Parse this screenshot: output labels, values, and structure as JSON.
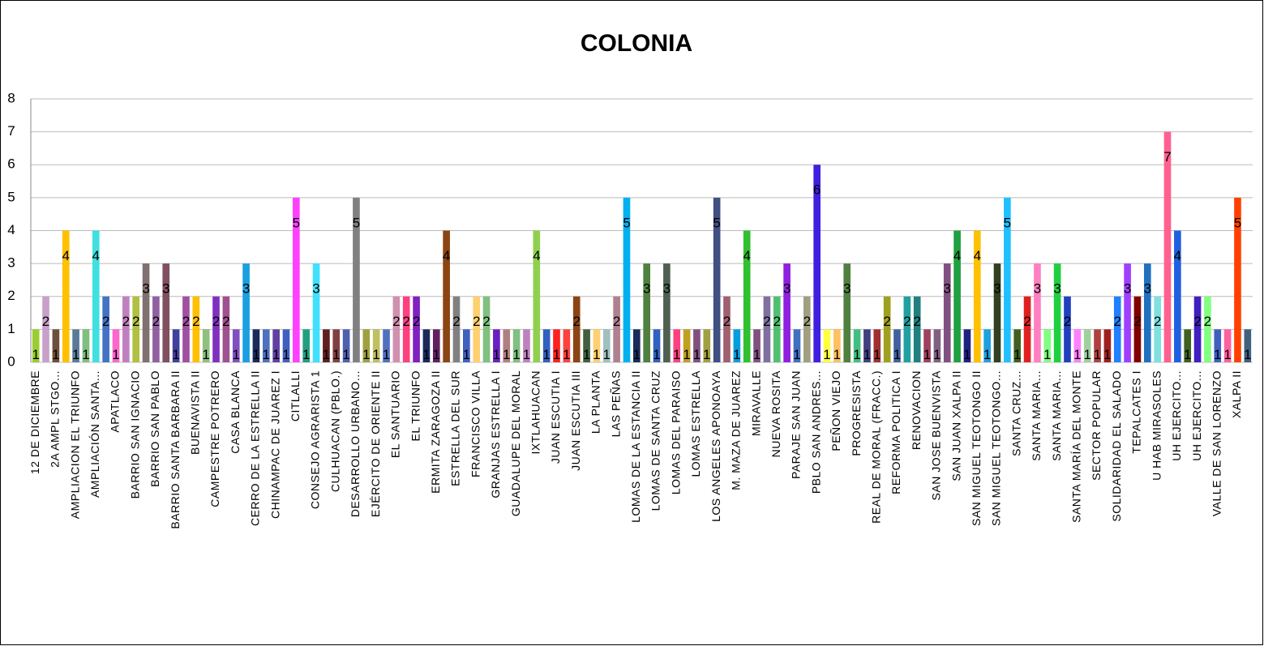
{
  "chart_data": {
    "type": "bar",
    "title": "COLONIA",
    "categories": [
      "12 DE DICIEMBRE",
      null,
      "2A AMPL STGO...",
      null,
      "AMPLIACION EL TRIUNFO",
      null,
      "AMPLIACIÓN SANTA...",
      null,
      "APATLACO",
      null,
      "BARRIO SAN IGNACIO",
      null,
      "BARRIO SAN PABLO",
      null,
      "BARRIO SANTA BARBARA II",
      null,
      "BUENAVISTA II",
      null,
      "CAMPESTRE POTRERO",
      null,
      "CASA BLANCA",
      null,
      "CERRO DE LA ESTRELLA II",
      null,
      "CHINAMPAC DE JUAREZ I",
      null,
      "CITLALLI",
      null,
      "CONSEJO AGRARISTA 1",
      null,
      "CULHUACAN (PBLO.)",
      null,
      "DESARROLLO URBANO...",
      null,
      "EJÉRCITO DE ORIENTE II",
      null,
      "EL SANTUARIO",
      null,
      "EL TRIUNFO",
      null,
      "ERMITA ZARAGOZA II",
      null,
      "ESTRELLA DEL SUR",
      null,
      "FRANCISCO VILLA",
      null,
      "GRANJAS ESTRELLA I",
      null,
      "GUADALUPE DEL MORAL",
      null,
      "IXTLAHUACAN",
      null,
      "JUAN ESCUTIA I",
      null,
      "JUAN ESCUTIA III",
      null,
      "LA PLANTA",
      null,
      "LAS PEÑAS",
      null,
      "LOMAS DE LA ESTANCIA II",
      null,
      "LOMAS DE SANTA CRUZ",
      null,
      "LOMAS DEL PARAISO",
      null,
      "LOMAS ESTRELLA",
      null,
      "LOS ANGELES APONOAYA",
      null,
      "M. MAZA DE JUAREZ",
      null,
      "MIRAVALLE",
      null,
      "NUEVA ROSITA",
      null,
      "PARAJE SAN JUAN",
      null,
      "PBLO SAN ANDRES...",
      null,
      "PEÑON VIEJO",
      null,
      "PROGRESISTA",
      null,
      "REAL DE MORAL (FRACC.)",
      null,
      "REFORMA POLITICA I",
      null,
      "RENOVACION",
      null,
      "SAN JOSE BUENVISTA",
      null,
      "SAN JUAN XALPA II",
      null,
      "SAN MIGUEL TEOTONGO II",
      null,
      "SAN MIGUEL TEOTONGO...",
      null,
      "SANTA CRUZ...",
      null,
      "SANTA MARIA...",
      null,
      "SANTA MARIA...",
      null,
      "SANTA MARÍA DEL MONTE",
      null,
      "SECTOR POPULAR",
      null,
      "SOLIDARIDAD EL SALADO",
      null,
      "TEPALCATES I",
      null,
      "U HAB MIRASOLES",
      null,
      "UH EJERCITO...",
      null,
      "UH EJERCITO...",
      null,
      "VALLE DE SAN LORENZO",
      null,
      "XALPA II",
      null
    ],
    "values": [
      1,
      2,
      1,
      4,
      1,
      1,
      4,
      2,
      1,
      2,
      2,
      3,
      2,
      3,
      1,
      2,
      2,
      1,
      2,
      2,
      1,
      3,
      1,
      1,
      1,
      1,
      5,
      1,
      3,
      1,
      1,
      1,
      5,
      1,
      1,
      1,
      2,
      2,
      2,
      1,
      1,
      4,
      2,
      1,
      2,
      2,
      1,
      1,
      1,
      1,
      4,
      1,
      1,
      1,
      2,
      1,
      1,
      1,
      2,
      5,
      1,
      3,
      1,
      3,
      1,
      1,
      1,
      1,
      5,
      2,
      1,
      4,
      1,
      2,
      2,
      3,
      1,
      2,
      6,
      1,
      1,
      3,
      1,
      1,
      1,
      2,
      1,
      2,
      2,
      1,
      1,
      3,
      4,
      1,
      4,
      1,
      3,
      5,
      1,
      2,
      3,
      1,
      3,
      2,
      1,
      1,
      1,
      1,
      2,
      3,
      2,
      3,
      2,
      7,
      4,
      1,
      2,
      2,
      1,
      1,
      5,
      1
    ],
    "colors": [
      "#9acd32",
      "#c8a0c8",
      "#6b4f3a",
      "#ffc000",
      "#5a7a9a",
      "#7fbf7f",
      "#40e0e0",
      "#4472c4",
      "#ff66cc",
      "#c080c0",
      "#b0c040",
      "#807070",
      "#9060a0",
      "#805060",
      "#4040a0",
      "#a050a0",
      "#ffc000",
      "#90c080",
      "#8030c0",
      "#a05090",
      "#8050c0",
      "#1aa0e0",
      "#1a2a5a",
      "#5070c0",
      "#6040a0",
      "#4060c0",
      "#ff40ff",
      "#20a080",
      "#40e0ff",
      "#602020",
      "#804040",
      "#5060b0",
      "#808080",
      "#a0a040",
      "#c0c060",
      "#5070c0",
      "#d090b0",
      "#ff4080",
      "#8020c0",
      "#1a2a5a",
      "#602060",
      "#8b4513",
      "#808080",
      "#4060c0",
      "#ffd070",
      "#80c080",
      "#6a20c0",
      "#b08080",
      "#80c080",
      "#c080c0",
      "#90d050",
      "#3060c0",
      "#ff2020",
      "#ff4040",
      "#8b4513",
      "#406040",
      "#ffd070",
      "#a0c0c0",
      "#b08090",
      "#00b0f0",
      "#1a2a5a",
      "#508040",
      "#3060c0",
      "#506050",
      "#ff4080",
      "#c0a020",
      "#805080",
      "#a0a040",
      "#405080",
      "#a06070",
      "#00a0e0",
      "#30c030",
      "#805080",
      "#8070a0",
      "#50c070",
      "#9020e0",
      "#4070c0",
      "#a0a080",
      "#4020e0",
      "#ffff40",
      "#ffc060",
      "#508040",
      "#40c080",
      "#404080",
      "#a03030",
      "#a0a020",
      "#4060a0",
      "#20a0a0",
      "#208080",
      "#a04060",
      "#806080",
      "#805080",
      "#20a040",
      "#202080",
      "#ffc000",
      "#20a0e0",
      "#304020",
      "#20c0ff",
      "#406020",
      "#e02020",
      "#ff80c0",
      "#80ff80",
      "#20d040",
      "#2040c0",
      "#ff80ff",
      "#a0d0a0",
      "#b04040",
      "#a02020",
      "#2080ff",
      "#a040ff",
      "#800000",
      "#2070c0",
      "#80e0e0",
      "#ff6090",
      "#2060e0",
      "#406020",
      "#4020c0",
      "#80ff80",
      "#4060c0",
      "#ff60a0",
      "#ff4000",
      "#406080"
    ],
    "ylim": [
      0,
      8
    ],
    "yticks": [
      0,
      1,
      2,
      3,
      4,
      5,
      6,
      7,
      8
    ],
    "grid": true
  }
}
